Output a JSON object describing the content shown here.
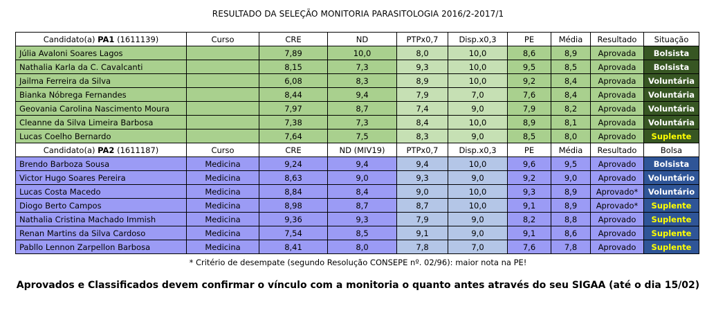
{
  "title": "RESULTADO DA SELEÇÃO MONITORIA PARASITOLOGIA 2016/2-2017/1",
  "pa1": {
    "header": {
      "candidate_prefix": "Candidato(a)",
      "code": "PA1",
      "number": "(1611139)",
      "curso": "Curso",
      "cre": "CRE",
      "nd": "ND",
      "ptp": "PTPx0,7",
      "disp": "Disp.x0,3",
      "pe": "PE",
      "media": "Média",
      "resultado": "Resultado",
      "situacao": "Situação"
    },
    "rows": [
      {
        "name": "Júlia Avaloni Soares Lagos",
        "curso": "",
        "cre": "7,89",
        "nd": "10,0",
        "ptp": "8,0",
        "disp": "10,0",
        "pe": "8,6",
        "media": "8,9",
        "resultado": "Aprovada",
        "situacao": "Bolsista"
      },
      {
        "name": "Nathalia Karla da C. Cavalcanti",
        "curso": "",
        "cre": "8,15",
        "nd": "7,3",
        "ptp": "9,3",
        "disp": "10,0",
        "pe": "9,5",
        "media": "8,5",
        "resultado": "Aprovada",
        "situacao": "Bolsista"
      },
      {
        "name": "Jailma Ferreira da Silva",
        "curso": "",
        "cre": "6,08",
        "nd": "8,3",
        "ptp": "8,9",
        "disp": "10,0",
        "pe": "9,2",
        "media": "8,4",
        "resultado": "Aprovada",
        "situacao": "Voluntária"
      },
      {
        "name": "Bianka Nóbrega Fernandes",
        "curso": "",
        "cre": "8,44",
        "nd": "9,4",
        "ptp": "7,9",
        "disp": "7,0",
        "pe": "7,6",
        "media": "8,4",
        "resultado": "Aprovada",
        "situacao": "Voluntária"
      },
      {
        "name": "Geovania Carolina Nascimento Moura",
        "curso": "",
        "cre": "7,97",
        "nd": "8,7",
        "ptp": "7,4",
        "disp": "9,0",
        "pe": "7,9",
        "media": "8,2",
        "resultado": "Aprovada",
        "situacao": "Voluntária"
      },
      {
        "name": "Cleanne da Silva Limeira Barbosa",
        "curso": "",
        "cre": "7,38",
        "nd": "7,3",
        "ptp": "8,4",
        "disp": "10,0",
        "pe": "8,9",
        "media": "8,1",
        "resultado": "Aprovada",
        "situacao": "Voluntária"
      },
      {
        "name": "Lucas Coelho Bernardo",
        "curso": "",
        "cre": "7,64",
        "nd": "7,5",
        "ptp": "8,3",
        "disp": "9,0",
        "pe": "8,5",
        "media": "8,0",
        "resultado": "Aprovado",
        "situacao": "Suplente"
      }
    ]
  },
  "pa2": {
    "header": {
      "candidate_prefix": "Candidato(a)",
      "code": "PA2",
      "number": "(1611187)",
      "curso": "Curso",
      "cre": "CRE",
      "nd": "ND (MIV19)",
      "ptp": "PTPx0,7",
      "disp": "Disp.x0,3",
      "pe": "PE",
      "media": "Média",
      "resultado": "Resultado",
      "situacao": "Bolsa"
    },
    "rows": [
      {
        "name": "Brendo Barboza Sousa",
        "curso": "Medicina",
        "cre": "9,24",
        "nd": "9,4",
        "ptp": "9,4",
        "disp": "10,0",
        "pe": "9,6",
        "media": "9,5",
        "resultado": "Aprovado",
        "situacao": "Bolsista"
      },
      {
        "name": "Victor Hugo Soares Pereira",
        "curso": "Medicina",
        "cre": "8,63",
        "nd": "9,0",
        "ptp": "9,3",
        "disp": "9,0",
        "pe": "9,2",
        "media": "9,0",
        "resultado": "Aprovado",
        "situacao": "Voluntário"
      },
      {
        "name": "Lucas Costa Macedo",
        "curso": "Medicina",
        "cre": "8,84",
        "nd": "8,4",
        "ptp": "9,0",
        "disp": "10,0",
        "pe": "9,3",
        "media": "8,9",
        "resultado": "Aprovado*",
        "situacao": "Voluntário"
      },
      {
        "name": "Diogo Berto Campos",
        "curso": "Medicina",
        "cre": "8,98",
        "nd": "8,7",
        "ptp": "8,7",
        "disp": "10,0",
        "pe": "9,1",
        "media": "8,9",
        "resultado": "Aprovado*",
        "situacao": "Suplente"
      },
      {
        "name": "Nathalia Cristina Machado Immish",
        "curso": "Medicina",
        "cre": "9,36",
        "nd": "9,3",
        "ptp": "7,9",
        "disp": "9,0",
        "pe": "8,2",
        "media": "8,8",
        "resultado": "Aprovado",
        "situacao": "Suplente"
      },
      {
        "name": "Renan Martins da Silva Cardoso",
        "curso": "Medicina",
        "cre": "7,54",
        "nd": "8,5",
        "ptp": "9,1",
        "disp": "9,0",
        "pe": "9,1",
        "media": "8,6",
        "resultado": "Aprovado",
        "situacao": "Suplente"
      },
      {
        "name": "Pabllo Lennon Zarpellon Barbosa",
        "curso": "Medicina",
        "cre": "8,41",
        "nd": "8,0",
        "ptp": "7,8",
        "disp": "7,0",
        "pe": "7,6",
        "media": "7,8",
        "resultado": "Aprovado",
        "situacao": "Suplente"
      }
    ]
  },
  "footnote": "* Critério de desempate (segundo Resolução CONSEPE nº. 02/96): maior nota na PE!",
  "notice": "Aprovados e Classificados devem confirmar o vínculo com a monitoria o quanto antes através do seu SIGAA (até o dia 15/02)",
  "colors": {
    "green_row": "#a9d08e",
    "green_light": "#c6e0b4",
    "green_dark": "#375623",
    "blue_row": "#9b9bf5",
    "blue_light": "#b4c6e7",
    "blue_dark": "#2f5597",
    "suplente_text": "#ffff00"
  }
}
